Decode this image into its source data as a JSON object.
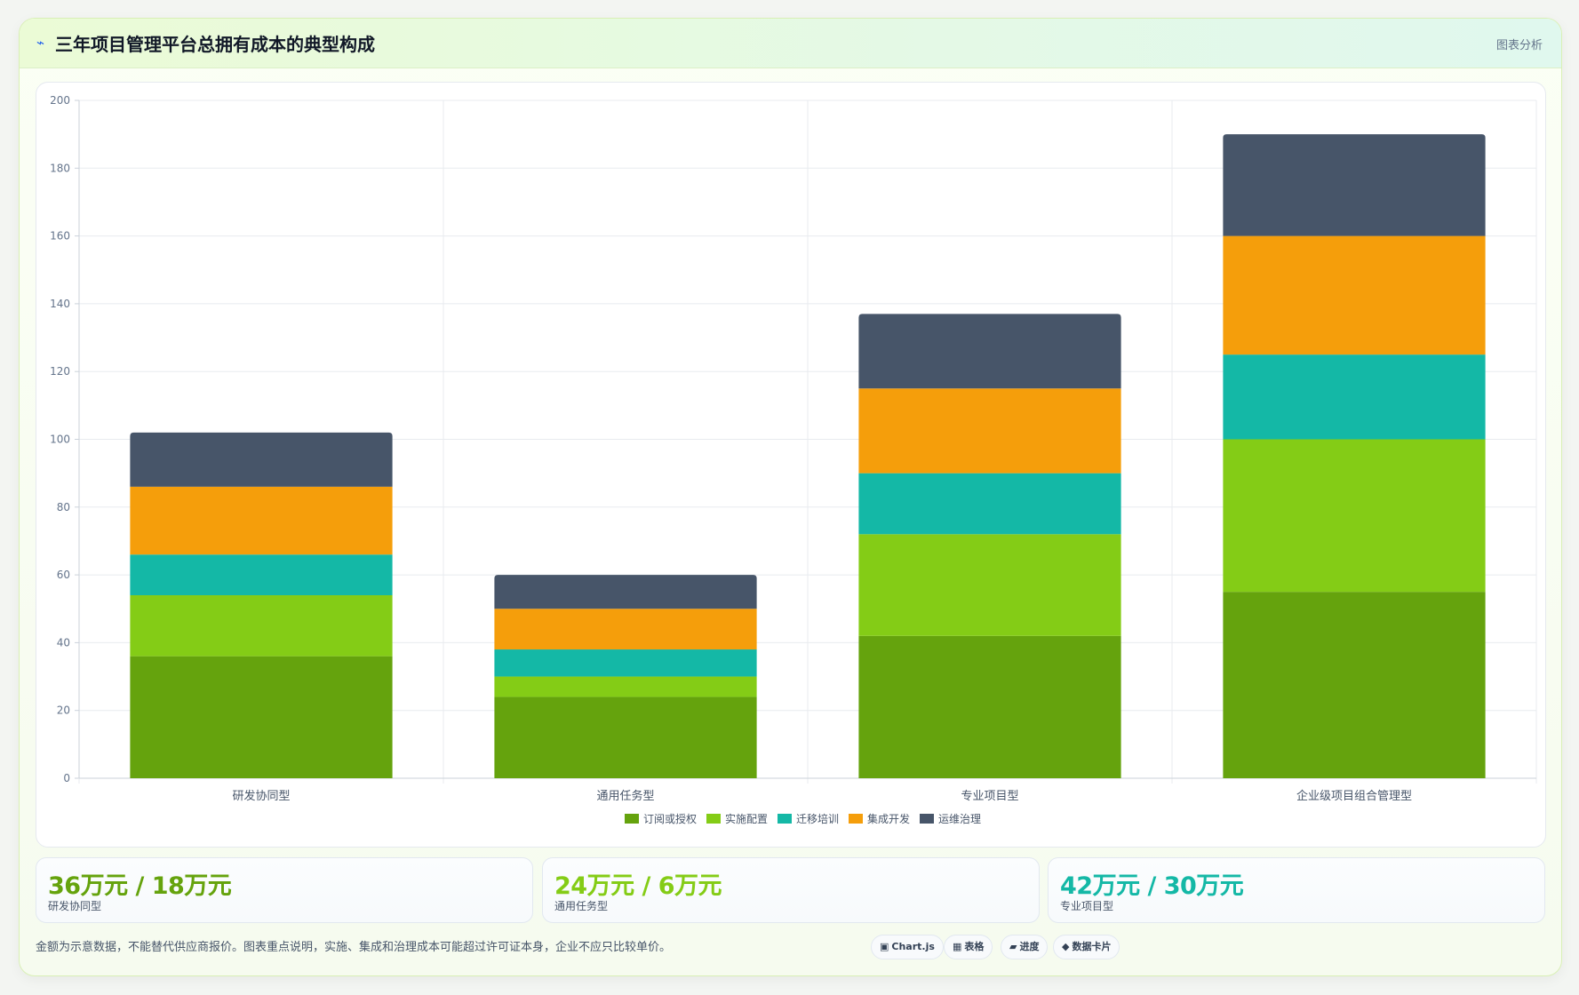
{
  "header": {
    "icon": "lightning-icon",
    "title": "三年项目管理平台总拥有成本的典型构成",
    "action": "图表分析"
  },
  "chart_data": {
    "type": "bar",
    "stacked": true,
    "categories": [
      "研发协同型",
      "通用任务型",
      "专业项目型",
      "企业级项目组合管理型"
    ],
    "series": [
      {
        "name": "订阅或授权",
        "color": "#65a30d",
        "values": [
          36,
          24,
          42,
          55
        ]
      },
      {
        "name": "实施配置",
        "color": "#84cc16",
        "values": [
          18,
          6,
          30,
          45
        ]
      },
      {
        "name": "迁移培训",
        "color": "#14b8a6",
        "values": [
          12,
          8,
          18,
          25
        ]
      },
      {
        "name": "集成开发",
        "color": "#f59e0b",
        "values": [
          20,
          12,
          25,
          35
        ]
      },
      {
        "name": "运维治理",
        "color": "#475569",
        "values": [
          16,
          10,
          22,
          30
        ]
      }
    ],
    "ylim": [
      0,
      200
    ],
    "yticks": [
      0,
      20,
      40,
      60,
      80,
      100,
      120,
      140,
      160,
      180,
      200
    ],
    "grid": true,
    "legend": "bottom"
  },
  "kpis": [
    {
      "value": "36万元 / 18万元",
      "label": "研发协同型",
      "color": "#65a30d"
    },
    {
      "value": "24万元 / 6万元",
      "label": "通用任务型",
      "color": "#84cc16"
    },
    {
      "value": "42万元 / 30万元",
      "label": "专业项目型",
      "color": "#14b8a6"
    }
  ],
  "footer": {
    "note": "金额为示意数据，不能替代供应商报价。图表重点说明，实施、集成和治理成本可能超过许可证本身，企业不应只比较单价。",
    "chips": [
      {
        "icon": "▣",
        "label": "Chart.js"
      },
      {
        "icon": "▦",
        "label": "表格"
      },
      {
        "icon": "▰",
        "label": "进度"
      },
      {
        "icon": "◆",
        "label": "数据卡片"
      }
    ]
  }
}
